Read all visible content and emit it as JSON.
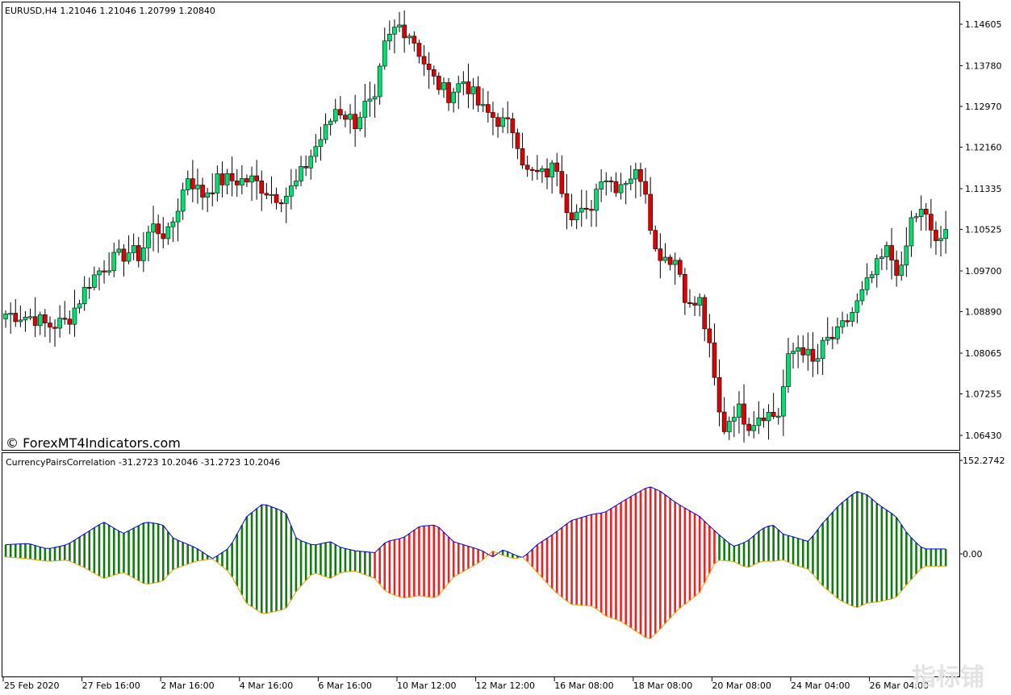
{
  "main_panel": {
    "title": "EURUSD,H4  1.21046 1.21046 1.20799 1.20840",
    "watermark": "© ForexMT4Indicators.com"
  },
  "indicator_panel": {
    "title": "CurrencyPairsCorrelation -31.2723 10.2046 -31.2723 10.2046"
  },
  "corner_logo": "指标铺",
  "colors": {
    "bull_candle": "#00e070",
    "bear_candle": "#e00000",
    "pos_hist": "#107a10",
    "neg_hist": "#f02020",
    "upper_line": "#0000cc",
    "lower_line": "#e0a000",
    "frame": "#000000"
  },
  "chart_data": [
    {
      "type": "candlestick",
      "symbol": "EURUSD",
      "timeframe": "H4",
      "y_ticks": [
        "1.14605",
        "1.13780",
        "1.12970",
        "1.12160",
        "1.11335",
        "1.10525",
        "1.09700",
        "1.08890",
        "1.08065",
        "1.07255",
        "1.06430"
      ],
      "ylim": [
        1.0615,
        1.1527
      ],
      "x_ticks": [
        "25 Feb 2020",
        "27 Feb 16:00",
        "2 Mar 16:00",
        "4 Mar 16:00",
        "6 Mar 16:00",
        "10 Mar 12:00",
        "12 Mar 12:00",
        "16 Mar 08:00",
        "18 Mar 08:00",
        "20 Mar 08:00",
        "24 Mar 04:00",
        "26 Mar 04:00"
      ],
      "close_path": [
        [
          0,
          1.0885
        ],
        [
          10,
          1.0878
        ],
        [
          15,
          1.086
        ],
        [
          22,
          1.087
        ],
        [
          30,
          1.095
        ],
        [
          35,
          1.098
        ],
        [
          44,
          1.1008
        ],
        [
          48,
          1.1
        ],
        [
          52,
          1.106
        ],
        [
          58,
          1.104
        ],
        [
          62,
          1.1105
        ],
        [
          65,
          1.116
        ],
        [
          70,
          1.112
        ],
        [
          76,
          1.115
        ],
        [
          80,
          1.115
        ],
        [
          88,
          1.115
        ],
        [
          96,
          1.112
        ],
        [
          100,
          1.112
        ],
        [
          104,
          1.1145
        ],
        [
          110,
          1.121
        ],
        [
          115,
          1.1255
        ],
        [
          118,
          1.1295
        ],
        [
          125,
          1.1265
        ],
        [
          128,
          1.1298
        ],
        [
          132,
          1.13
        ],
        [
          135,
          1.141
        ],
        [
          140,
          1.146
        ],
        [
          145,
          1.144
        ],
        [
          152,
          1.1355
        ],
        [
          158,
          1.132
        ],
        [
          164,
          1.135
        ],
        [
          170,
          1.129
        ],
        [
          176,
          1.127
        ],
        [
          182,
          1.125
        ],
        [
          186,
          1.1165
        ],
        [
          192,
          1.116
        ],
        [
          197,
          1.118
        ],
        [
          201,
          1.109
        ],
        [
          208,
          1.108
        ],
        [
          213,
          1.1165
        ],
        [
          218,
          1.114
        ],
        [
          224,
          1.1162
        ],
        [
          228,
          1.116
        ],
        [
          232,
          1.101
        ],
        [
          236,
          1.1
        ],
        [
          240,
          1.099
        ],
        [
          244,
          1.0895
        ],
        [
          248,
          1.091
        ],
        [
          252,
          1.08
        ],
        [
          256,
          1.065
        ],
        [
          261,
          1.07
        ],
        [
          266,
          1.0665
        ],
        [
          270,
          1.069
        ],
        [
          276,
          1.068
        ],
        [
          280,
          1.08
        ],
        [
          284,
          1.0825
        ],
        [
          289,
          1.078
        ],
        [
          293,
          1.083
        ],
        [
          297,
          1.084
        ],
        [
          304,
          1.09
        ],
        [
          310,
          1.0965
        ],
        [
          315,
          1.101
        ],
        [
          320,
          1.096
        ],
        [
          324,
          1.108
        ],
        [
          328,
          1.1085
        ],
        [
          332,
          1.1035
        ],
        [
          336,
          1.101
        ]
      ],
      "closing_value": 1.10525
    },
    {
      "type": "histogram_band",
      "name": "CurrencyPairsCorrelation",
      "y_ticks": [
        "152.2742",
        "0.00"
      ],
      "ylim": [
        -158,
        152.2742
      ],
      "upper": [
        [
          0,
          15
        ],
        [
          8,
          17
        ],
        [
          15,
          8
        ],
        [
          22,
          15
        ],
        [
          28,
          32
        ],
        [
          35,
          52
        ],
        [
          42,
          33
        ],
        [
          50,
          52
        ],
        [
          56,
          48
        ],
        [
          60,
          25
        ],
        [
          68,
          10
        ],
        [
          74,
          -8
        ],
        [
          80,
          10
        ],
        [
          86,
          60
        ],
        [
          92,
          82
        ],
        [
          100,
          68
        ],
        [
          104,
          24
        ],
        [
          110,
          14
        ],
        [
          116,
          20
        ],
        [
          120,
          10
        ],
        [
          125,
          5
        ],
        [
          132,
          2
        ],
        [
          136,
          20
        ],
        [
          142,
          26
        ],
        [
          148,
          45
        ],
        [
          154,
          47
        ],
        [
          160,
          20
        ],
        [
          170,
          6
        ],
        [
          174,
          -5
        ],
        [
          178,
          7
        ],
        [
          182,
          -2
        ],
        [
          185,
          -6
        ],
        [
          190,
          15
        ],
        [
          196,
          33
        ],
        [
          202,
          54
        ],
        [
          210,
          65
        ],
        [
          214,
          67
        ],
        [
          220,
          84
        ],
        [
          224,
          95
        ],
        [
          230,
          110
        ],
        [
          234,
          102
        ],
        [
          240,
          82
        ],
        [
          248,
          61
        ],
        [
          254,
          35
        ],
        [
          260,
          12
        ],
        [
          265,
          20
        ],
        [
          270,
          40
        ],
        [
          274,
          48
        ],
        [
          278,
          32
        ],
        [
          282,
          27
        ],
        [
          287,
          20
        ],
        [
          292,
          50
        ],
        [
          298,
          80
        ],
        [
          304,
          102
        ],
        [
          308,
          96
        ],
        [
          312,
          80
        ],
        [
          318,
          62
        ],
        [
          322,
          35
        ],
        [
          325,
          20
        ],
        [
          328,
          8
        ]
      ],
      "lower": [
        [
          0,
          -5
        ],
        [
          8,
          -8
        ],
        [
          15,
          -12
        ],
        [
          22,
          -10
        ],
        [
          28,
          -22
        ],
        [
          35,
          -40
        ],
        [
          42,
          -30
        ],
        [
          50,
          -50
        ],
        [
          56,
          -45
        ],
        [
          60,
          -25
        ],
        [
          68,
          -12
        ],
        [
          74,
          -8
        ],
        [
          80,
          -30
        ],
        [
          86,
          -80
        ],
        [
          92,
          -98
        ],
        [
          100,
          -90
        ],
        [
          104,
          -60
        ],
        [
          110,
          -30
        ],
        [
          116,
          -40
        ],
        [
          120,
          -30
        ],
        [
          125,
          -28
        ],
        [
          132,
          -40
        ],
        [
          136,
          -62
        ],
        [
          142,
          -72
        ],
        [
          148,
          -68
        ],
        [
          154,
          -72
        ],
        [
          160,
          -38
        ],
        [
          170,
          -12
        ],
        [
          174,
          5
        ],
        [
          178,
          -3
        ],
        [
          182,
          -8
        ],
        [
          185,
          -5
        ],
        [
          190,
          -30
        ],
        [
          196,
          -60
        ],
        [
          202,
          -82
        ],
        [
          210,
          -85
        ],
        [
          214,
          -100
        ],
        [
          220,
          -110
        ],
        [
          224,
          -122
        ],
        [
          230,
          -140
        ],
        [
          234,
          -122
        ],
        [
          240,
          -92
        ],
        [
          248,
          -63
        ],
        [
          254,
          -10
        ],
        [
          260,
          -12
        ],
        [
          265,
          -23
        ],
        [
          270,
          -12
        ],
        [
          274,
          -12
        ],
        [
          278,
          -10
        ],
        [
          282,
          -18
        ],
        [
          287,
          -25
        ],
        [
          292,
          -52
        ],
        [
          298,
          -75
        ],
        [
          304,
          -88
        ],
        [
          308,
          -80
        ],
        [
          312,
          -78
        ],
        [
          318,
          -72
        ],
        [
          322,
          -50
        ],
        [
          325,
          -35
        ],
        [
          328,
          -20
        ]
      ],
      "sign": [
        [
          0,
          76,
          "positive"
        ],
        [
          76,
          82,
          "positive"
        ],
        [
          82,
          131,
          "positive"
        ],
        [
          131,
          134,
          "negative"
        ],
        [
          134,
          176,
          "negative"
        ],
        [
          176,
          183,
          "positive"
        ],
        [
          183,
          198,
          "negative"
        ],
        [
          198,
          255,
          "negative"
        ],
        [
          255,
          330,
          "positive"
        ]
      ]
    }
  ]
}
